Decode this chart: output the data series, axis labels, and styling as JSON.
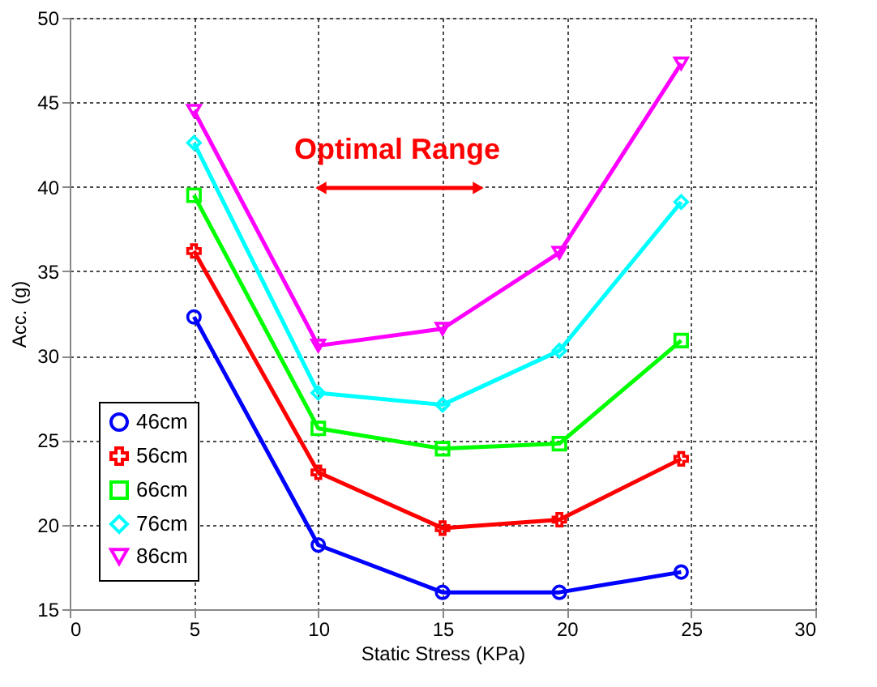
{
  "chart_data": {
    "type": "line",
    "xlabel": "Static Stress (KPa)",
    "ylabel": "Acc. (g)",
    "x": [
      5,
      10,
      15,
      19.7,
      24.6
    ],
    "series": [
      {
        "name": "46cm",
        "color": "#0000ff",
        "marker": "circle",
        "values": [
          32.3,
          18.8,
          16,
          16,
          17.2
        ]
      },
      {
        "name": "56cm",
        "color": "#ff0000",
        "marker": "cross",
        "values": [
          36.2,
          23.1,
          19.8,
          20.3,
          23.9
        ]
      },
      {
        "name": "66cm",
        "color": "#00ff00",
        "marker": "square",
        "values": [
          39.5,
          25.7,
          24.5,
          24.8,
          30.9
        ]
      },
      {
        "name": "76cm",
        "color": "#00ffff",
        "marker": "diamond",
        "values": [
          42.6,
          27.8,
          27.1,
          30.3,
          39.1
        ]
      },
      {
        "name": "86cm",
        "color": "#ff00ff",
        "marker": "triangle",
        "values": [
          44.5,
          30.6,
          31.6,
          36.1,
          47.3
        ]
      }
    ],
    "xlim": [
      0,
      30
    ],
    "xticks": [
      0,
      5,
      10,
      15,
      20,
      25,
      30
    ],
    "ylim": [
      15,
      50
    ],
    "yticks": [
      15,
      20,
      25,
      30,
      35,
      40,
      45,
      50
    ],
    "annotations": [
      "Optimal Range"
    ],
    "grid": true,
    "legend": "bottom left",
    "line_style": "solid"
  }
}
